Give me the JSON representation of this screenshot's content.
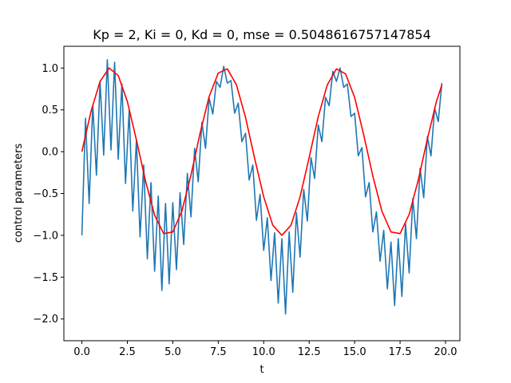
{
  "chart_data": {
    "type": "line",
    "title": "Kp = 2, Ki = 0, Kd = 0, mse = 0.5048616757147854",
    "xlabel": "t",
    "ylabel": "control parameters",
    "xlim": [
      -0.99,
      20.79
    ],
    "ylim": [
      -2.26,
      1.26
    ],
    "grid": false,
    "xticks": [
      0.0,
      2.5,
      5.0,
      7.5,
      10.0,
      12.5,
      15.0,
      17.5,
      20.0
    ],
    "xtick_labels": [
      "0.0",
      "2.5",
      "5.0",
      "7.5",
      "10.0",
      "12.5",
      "15.0",
      "17.5",
      "20.0"
    ],
    "yticks": [
      -2.0,
      -1.5,
      -1.0,
      -0.5,
      0.0,
      0.5,
      1.0
    ],
    "ytick_labels": [
      "−2.0",
      "−1.5",
      "−1.0",
      "−0.5",
      "0.0",
      "0.5",
      "1.0"
    ],
    "series": [
      {
        "color": "#ff0000",
        "x": [
          0.0,
          0.5,
          1.0,
          1.5,
          2.0,
          2.5,
          3.0,
          3.5,
          4.0,
          4.5,
          5.0,
          5.5,
          6.0,
          6.5,
          7.0,
          7.5,
          8.0,
          8.5,
          9.0,
          9.5,
          10.0,
          10.5,
          11.0,
          11.5,
          12.0,
          12.5,
          13.0,
          13.5,
          14.0,
          14.5,
          15.0,
          15.5,
          16.0,
          16.5,
          17.0,
          17.5,
          18.0,
          18.5,
          19.0,
          19.5,
          19.8
        ],
        "y": [
          0.0,
          0.48,
          0.84,
          1.0,
          0.91,
          0.6,
          0.14,
          -0.35,
          -0.76,
          -0.98,
          -0.96,
          -0.71,
          -0.28,
          0.22,
          0.66,
          0.94,
          0.99,
          0.8,
          0.41,
          -0.08,
          -0.54,
          -0.88,
          -1.0,
          -0.88,
          -0.54,
          -0.07,
          0.42,
          0.8,
          0.99,
          0.93,
          0.65,
          0.2,
          -0.29,
          -0.71,
          -0.96,
          -0.98,
          -0.75,
          -0.34,
          0.15,
          0.6,
          0.8
        ]
      },
      {
        "color": "#1f77b4",
        "x": [
          0.0,
          0.2,
          0.4,
          0.6,
          0.8,
          1.0,
          1.2,
          1.4,
          1.6,
          1.8,
          2.0,
          2.2,
          2.4,
          2.6,
          2.8,
          3.0,
          3.2,
          3.4,
          3.6,
          3.8,
          4.0,
          4.2,
          4.4,
          4.6,
          4.8,
          5.0,
          5.2,
          5.4,
          5.6,
          5.8,
          6.0,
          6.2,
          6.4,
          6.6,
          6.8,
          7.0,
          7.2,
          7.4,
          7.6,
          7.8,
          8.0,
          8.2,
          8.4,
          8.6,
          8.8,
          9.0,
          9.2,
          9.4,
          9.6,
          9.8,
          10.0,
          10.2,
          10.4,
          10.6,
          10.8,
          11.0,
          11.2,
          11.4,
          11.6,
          11.8,
          12.0,
          12.2,
          12.4,
          12.6,
          12.8,
          13.0,
          13.2,
          13.4,
          13.6,
          13.8,
          14.0,
          14.2,
          14.4,
          14.6,
          14.8,
          15.0,
          15.2,
          15.4,
          15.6,
          15.8,
          16.0,
          16.2,
          16.4,
          16.6,
          16.8,
          17.0,
          17.2,
          17.4,
          17.6,
          17.8,
          18.0,
          18.2,
          18.4,
          18.6,
          18.8,
          19.0,
          19.2,
          19.4,
          19.6,
          19.8
        ],
        "y": [
          -1.0,
          0.4,
          -0.62,
          0.56,
          -0.28,
          0.84,
          -0.04,
          1.1,
          0.02,
          1.07,
          -0.09,
          0.81,
          -0.38,
          0.49,
          -0.71,
          0.14,
          -1.02,
          -0.16,
          -1.28,
          -0.37,
          -1.43,
          -0.53,
          -1.66,
          -0.62,
          -1.58,
          -0.61,
          -1.41,
          -0.49,
          -1.11,
          -0.26,
          -0.78,
          0.04,
          -0.36,
          0.35,
          0.04,
          0.64,
          0.45,
          0.84,
          0.77,
          1.02,
          0.82,
          0.85,
          0.46,
          0.58,
          0.12,
          0.22,
          -0.34,
          -0.16,
          -0.82,
          -0.51,
          -1.18,
          -0.79,
          -1.54,
          -0.97,
          -1.81,
          -1.04,
          -1.94,
          -0.96,
          -1.68,
          -0.73,
          -1.26,
          -0.45,
          -0.83,
          -0.07,
          -0.32,
          0.32,
          0.12,
          0.65,
          0.55,
          0.96,
          0.84,
          1.0,
          0.77,
          0.81,
          0.42,
          0.46,
          -0.05,
          0.05,
          -0.54,
          -0.37,
          -0.96,
          -0.72,
          -1.31,
          -0.94,
          -1.64,
          -1.08,
          -1.84,
          -1.04,
          -1.73,
          -0.86,
          -1.45,
          -0.56,
          -1.04,
          -0.2,
          -0.55,
          0.18,
          -0.05,
          0.52,
          0.36,
          0.82
        ]
      }
    ]
  }
}
